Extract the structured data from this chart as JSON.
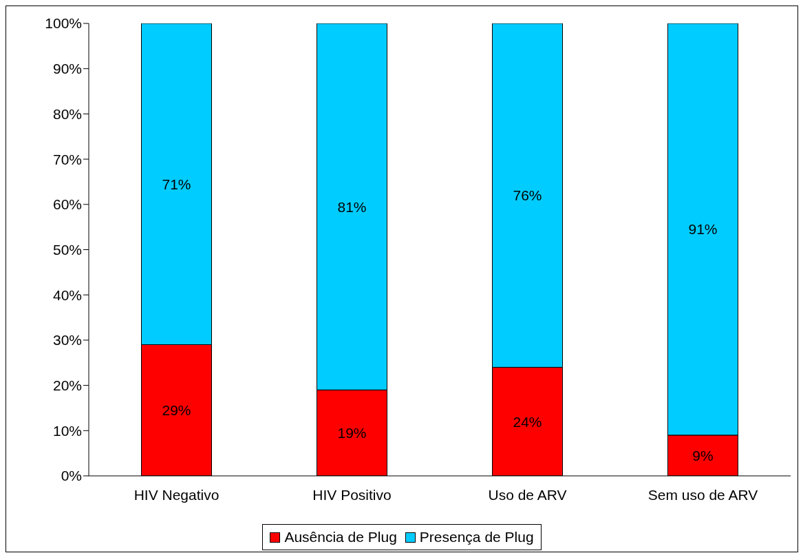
{
  "chart_data": {
    "type": "bar",
    "stacked": true,
    "categories": [
      "HIV Negativo",
      "HIV Positivo",
      "Uso de ARV",
      "Sem uso de ARV"
    ],
    "series": [
      {
        "name": "Ausência de Plug",
        "color": "#ff0000",
        "values": [
          29,
          19,
          24,
          9
        ],
        "value_labels": [
          "29%",
          "19%",
          "24%",
          "9%"
        ]
      },
      {
        "name": "Presença de Plug",
        "color": "#00ccff",
        "values": [
          71,
          81,
          76,
          91
        ],
        "value_labels": [
          "71%",
          "81%",
          "76%",
          "91%"
        ]
      }
    ],
    "ylim": [
      0,
      100
    ],
    "yticks": [
      {
        "value": 0,
        "label": "0%"
      },
      {
        "value": 10,
        "label": "10%"
      },
      {
        "value": 20,
        "label": "20%"
      },
      {
        "value": 30,
        "label": "30%"
      },
      {
        "value": 40,
        "label": "40%"
      },
      {
        "value": 50,
        "label": "50%"
      },
      {
        "value": 60,
        "label": "60%"
      },
      {
        "value": 70,
        "label": "70%"
      },
      {
        "value": 80,
        "label": "80%"
      },
      {
        "value": 90,
        "label": "90%"
      },
      {
        "value": 100,
        "label": "100%"
      }
    ],
    "grid": false,
    "legend": "bottom"
  }
}
